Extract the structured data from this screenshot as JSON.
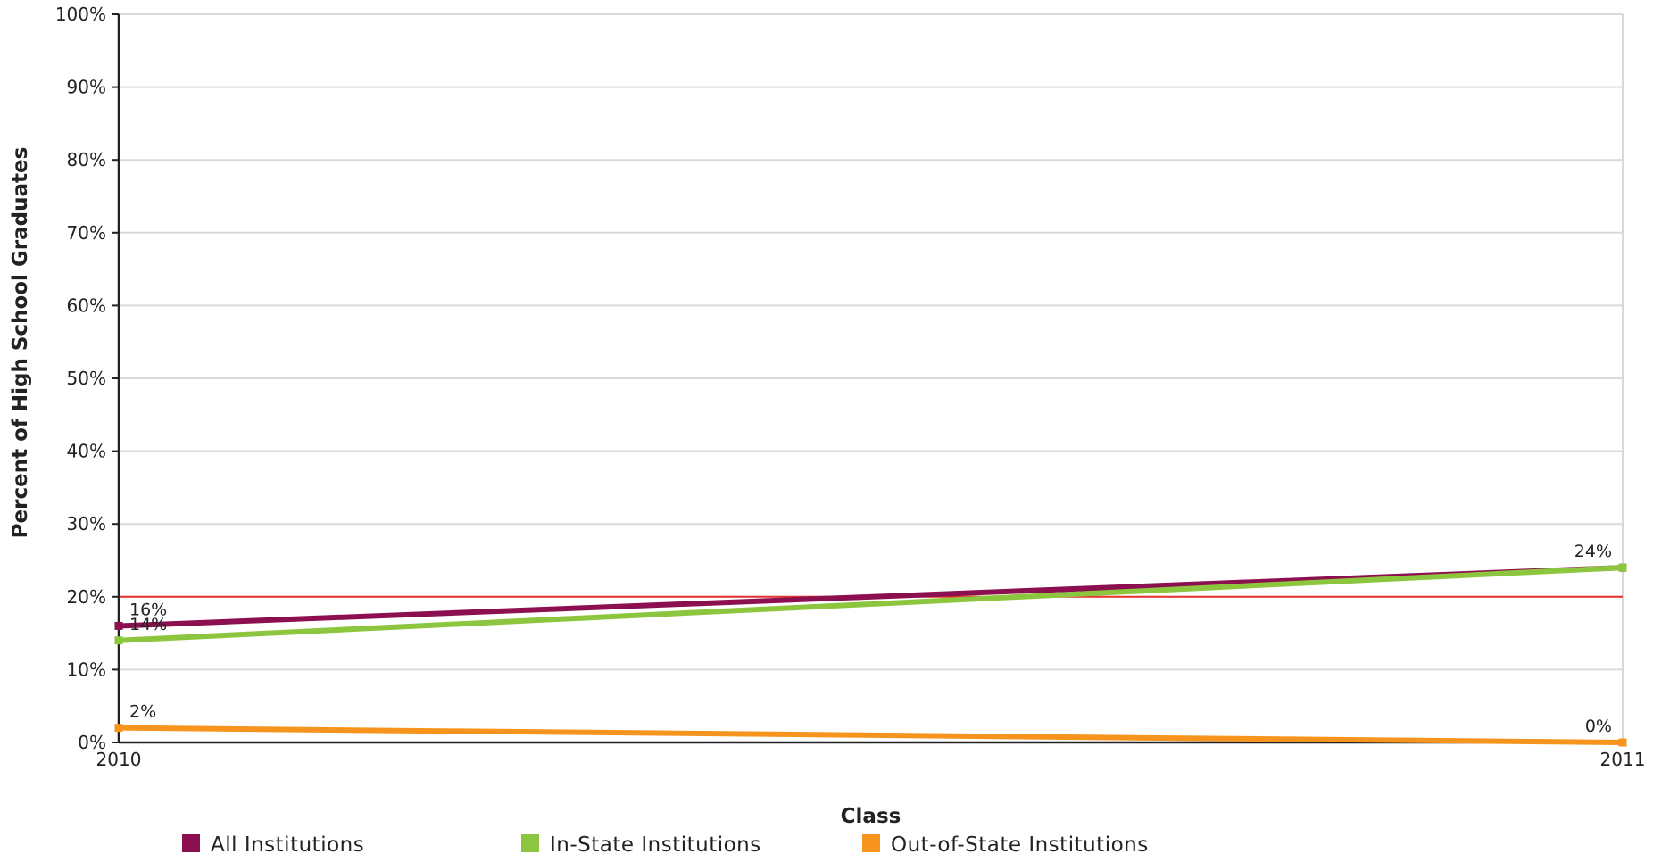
{
  "chart_data": {
    "type": "line",
    "title": "",
    "xlabel": "Class",
    "ylabel": "Percent of High School Graduates",
    "categories": [
      "2010",
      "2011"
    ],
    "x_tick_labels": [
      "2010",
      "2011"
    ],
    "y_tick_labels": [
      "0%",
      "10%",
      "20%",
      "30%",
      "40%",
      "50%",
      "60%",
      "70%",
      "80%",
      "90%",
      "100%"
    ],
    "ylim": [
      0,
      100
    ],
    "grid": true,
    "reference_line": {
      "value": 20,
      "color": "#e8332f"
    },
    "legend_position": "bottom",
    "series": [
      {
        "name": "All Institutions",
        "color": "#8c0f4f",
        "values": [
          16,
          24
        ],
        "labels": [
          "16%",
          ""
        ]
      },
      {
        "name": "In-State Institutions",
        "color": "#8cc63f",
        "values": [
          14,
          24
        ],
        "labels": [
          "14%",
          "24%"
        ]
      },
      {
        "name": "Out-of-State Institutions",
        "color": "#f7941d",
        "values": [
          2,
          0
        ],
        "labels": [
          "2%",
          "0%"
        ]
      }
    ]
  }
}
